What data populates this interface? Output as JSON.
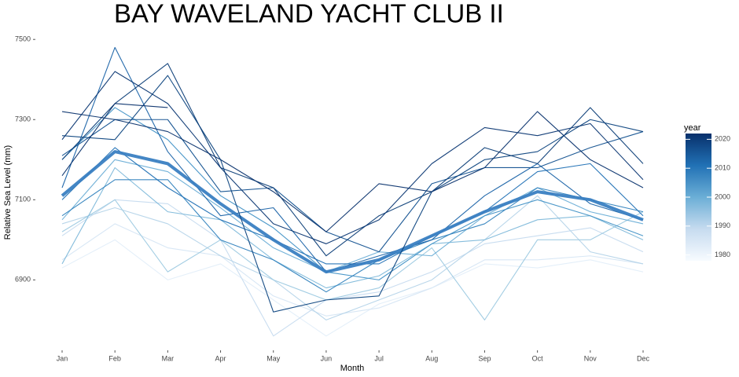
{
  "chart_data": {
    "type": "line",
    "title": "BAY WAVELAND YACHT CLUB II",
    "x_label": "Month",
    "y_label": "Relative Sea Level (mm)",
    "categories": [
      "Jan",
      "Feb",
      "Mar",
      "Apr",
      "May",
      "Jun",
      "Jul",
      "Aug",
      "Sep",
      "Oct",
      "Nov",
      "Dec"
    ],
    "ylim": [
      6740,
      7520
    ],
    "yticks": [
      6900,
      7100,
      7300,
      7500
    ],
    "grid": false,
    "colorbar": {
      "title": "year",
      "lim": [
        1978,
        2022
      ],
      "ticks": [
        1980,
        1990,
        2000,
        2010,
        2020
      ],
      "colors": [
        "#f7fbff",
        "#c6dbef",
        "#6baed6",
        "#2171b5",
        "#08306b"
      ]
    },
    "series": [
      {
        "color": "#e3eef9",
        "values": [
          6930,
          7000,
          6900,
          6940,
          6850,
          6760,
          6840,
          6880,
          6940,
          6930,
          6950,
          6920
        ]
      },
      {
        "color": "#d6e6f4",
        "values": [
          6950,
          7040,
          6980,
          6960,
          6860,
          6810,
          6830,
          6880,
          6950,
          6950,
          6960,
          6940
        ]
      },
      {
        "color": "#c6dbef",
        "values": [
          7010,
          7100,
          7090,
          7000,
          6760,
          6850,
          6870,
          6920,
          6990,
          7010,
          7030,
          6970
        ]
      },
      {
        "color": "#b5d4e9",
        "values": [
          7040,
          7080,
          7040,
          6960,
          6900,
          6800,
          6850,
          6900,
          7000,
          7110,
          6970,
          6940
        ]
      },
      {
        "color": "#9ecae1",
        "values": [
          7020,
          7100,
          6920,
          7000,
          6900,
          6850,
          6880,
          6980,
          6800,
          7000,
          7000,
          7070
        ]
      },
      {
        "color": "#7fb9da",
        "values": [
          6940,
          7180,
          7070,
          7050,
          6950,
          6880,
          6910,
          6990,
          7000,
          7050,
          7060,
          7000
        ]
      },
      {
        "color": "#6baed6",
        "values": [
          7050,
          7200,
          7170,
          7080,
          6980,
          6920,
          6970,
          6960,
          7060,
          7130,
          7070,
          7040
        ]
      },
      {
        "color": "#4292c6",
        "values": [
          7200,
          7330,
          7250,
          7110,
          7030,
          6920,
          6900,
          6990,
          7060,
          7100,
          7060,
          7010
        ]
      },
      {
        "color": "#3383be",
        "values": [
          7060,
          7150,
          7150,
          7000,
          6950,
          6870,
          6950,
          7000,
          7040,
          7130,
          7100,
          7070
        ]
      },
      {
        "color": "#2171b5",
        "values": [
          7100,
          7230,
          7130,
          7050,
          7000,
          6940,
          6940,
          7010,
          7070,
          7170,
          7190,
          7060
        ]
      },
      {
        "color": "#1a63a8",
        "values": [
          7130,
          7480,
          7220,
          7060,
          7080,
          6920,
          6960,
          7000,
          7110,
          7190,
          7090,
          7050
        ]
      },
      {
        "color": "#3a80c2",
        "width": 4,
        "values": [
          7110,
          7220,
          7190,
          7090,
          7000,
          6920,
          6950,
          7010,
          7070,
          7120,
          7100,
          7050
        ]
      },
      {
        "color": "#11508f",
        "values": [
          7210,
          7300,
          7300,
          7120,
          7130,
          7020,
          6970,
          7140,
          7180,
          7180,
          7230,
          7270
        ]
      },
      {
        "color": "#0d4580",
        "values": [
          7260,
          7250,
          7410,
          7200,
          6820,
          6850,
          6860,
          7120,
          7200,
          7220,
          7300,
          7270
        ]
      },
      {
        "color": "#0b3d77",
        "values": [
          7200,
          7340,
          7440,
          7180,
          7130,
          6960,
          7060,
          7120,
          7230,
          7190,
          7330,
          7190
        ]
      },
      {
        "color": "#0a3672",
        "values": [
          7250,
          7420,
          7340,
          7180,
          7040,
          6990,
          7050,
          7190,
          7280,
          7260,
          7290,
          7150
        ]
      },
      {
        "color": "#09336e",
        "values": [
          7320,
          7300,
          7270,
          7200,
          7120,
          7020,
          7140,
          7120,
          7180,
          7320,
          7200,
          7130
        ]
      },
      {
        "color": "#08306b",
        "values": [
          7160,
          7340,
          7330,
          null,
          null,
          null,
          null,
          null,
          null,
          null,
          null,
          null
        ]
      }
    ]
  }
}
